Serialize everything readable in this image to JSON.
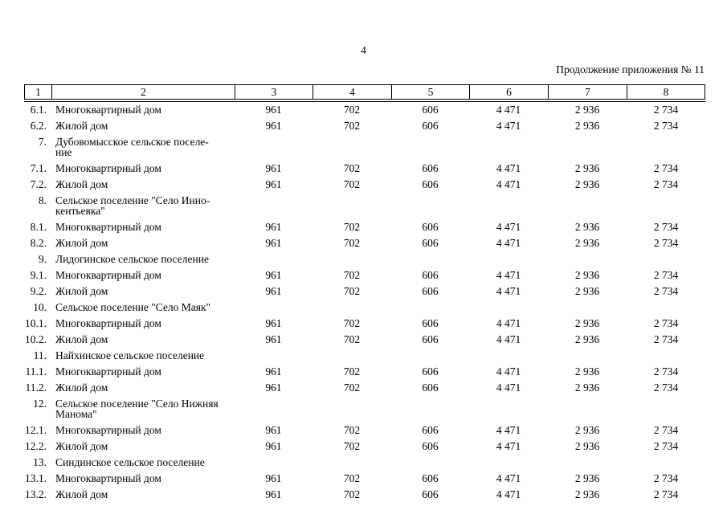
{
  "page": {
    "number": "4",
    "continuation_note": "Продолжение приложения № 11"
  },
  "table": {
    "header": [
      "1",
      "2",
      "3",
      "4",
      "5",
      "6",
      "7",
      "8"
    ],
    "rows": [
      {
        "num": "6.1.",
        "name": "Многоквартирный дом",
        "c3": "961",
        "c4": "702",
        "c5": "606",
        "c6": "4 471",
        "c7": "2 936",
        "c8": "2 734"
      },
      {
        "num": "6.2.",
        "name": "Жилой дом",
        "c3": "961",
        "c4": "702",
        "c5": "606",
        "c6": "4 471",
        "c7": "2 936",
        "c8": "2 734"
      },
      {
        "num": "7.",
        "name": "Дубовомысское сельское поселе-\nние"
      },
      {
        "num": "7.1.",
        "name": "Многоквартирный дом",
        "c3": "961",
        "c4": "702",
        "c5": "606",
        "c6": "4 471",
        "c7": "2 936",
        "c8": "2 734"
      },
      {
        "num": "7.2.",
        "name": "Жилой дом",
        "c3": "961",
        "c4": "702",
        "c5": "606",
        "c6": "4 471",
        "c7": "2 936",
        "c8": "2 734"
      },
      {
        "num": "8.",
        "name": "Сельское поселение \"Село Инно-\nкентьевка\""
      },
      {
        "num": "8.1.",
        "name": "Многоквартирный дом",
        "c3": "961",
        "c4": "702",
        "c5": "606",
        "c6": "4 471",
        "c7": "2 936",
        "c8": "2 734"
      },
      {
        "num": "8.2.",
        "name": "Жилой дом",
        "c3": "961",
        "c4": "702",
        "c5": "606",
        "c6": "4 471",
        "c7": "2 936",
        "c8": "2 734"
      },
      {
        "num": "9.",
        "name": "Лидогинское сельское поселение"
      },
      {
        "num": "9.1.",
        "name": "Многоквартирный дом",
        "c3": "961",
        "c4": "702",
        "c5": "606",
        "c6": "4 471",
        "c7": "2 936",
        "c8": "2 734"
      },
      {
        "num": "9.2.",
        "name": "Жилой дом",
        "c3": "961",
        "c4": "702",
        "c5": "606",
        "c6": "4 471",
        "c7": "2 936",
        "c8": "2 734"
      },
      {
        "num": "10.",
        "name": "Сельское поселение \"Село Маяк\""
      },
      {
        "num": "10.1.",
        "name": "Многоквартирный дом",
        "c3": "961",
        "c4": "702",
        "c5": "606",
        "c6": "4 471",
        "c7": "2 936",
        "c8": "2 734"
      },
      {
        "num": "10.2.",
        "name": "Жилой дом",
        "c3": "961",
        "c4": "702",
        "c5": "606",
        "c6": "4 471",
        "c7": "2 936",
        "c8": "2 734"
      },
      {
        "num": "11.",
        "name": "Найхинское сельское поселение"
      },
      {
        "num": "11.1.",
        "name": "Многоквартирный дом",
        "c3": "961",
        "c4": "702",
        "c5": "606",
        "c6": "4 471",
        "c7": "2 936",
        "c8": "2 734"
      },
      {
        "num": "11.2.",
        "name": "Жилой дом",
        "c3": "961",
        "c4": "702",
        "c5": "606",
        "c6": "4 471",
        "c7": "2 936",
        "c8": "2 734"
      },
      {
        "num": "12.",
        "name": "Сельское поселение \"Село Нижняя\nМанома\""
      },
      {
        "num": "12.1.",
        "name": "Многоквартирный дом",
        "c3": "961",
        "c4": "702",
        "c5": "606",
        "c6": "4 471",
        "c7": "2 936",
        "c8": "2 734"
      },
      {
        "num": "12.2.",
        "name": "Жилой дом",
        "c3": "961",
        "c4": "702",
        "c5": "606",
        "c6": "4 471",
        "c7": "2 936",
        "c8": "2 734"
      },
      {
        "num": "13.",
        "name": "Синдинское сельское поселение"
      },
      {
        "num": "13.1.",
        "name": "Многоквартирный дом",
        "c3": "961",
        "c4": "702",
        "c5": "606",
        "c6": "4 471",
        "c7": "2 936",
        "c8": "2 734"
      },
      {
        "num": "13.2.",
        "name": "Жилой дом",
        "c3": "961",
        "c4": "702",
        "c5": "606",
        "c6": "4 471",
        "c7": "2 936",
        "c8": "2 734"
      }
    ]
  }
}
